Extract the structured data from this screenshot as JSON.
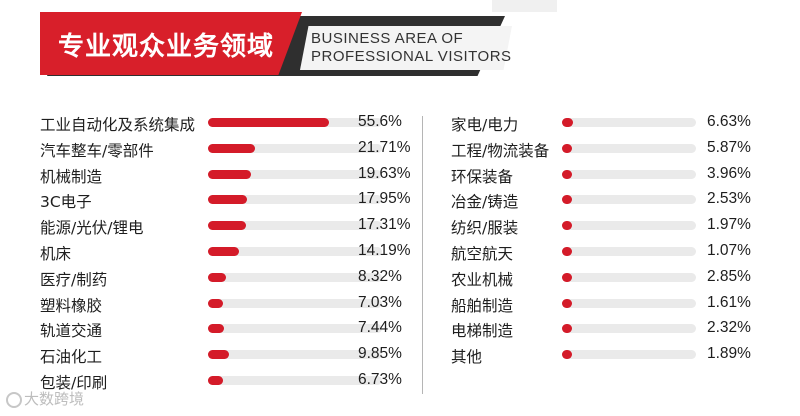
{
  "header": {
    "title_cn": "专业观众业务领域",
    "title_en_line1": "BUSINESS AREA OF",
    "title_en_line2": "PROFESSIONAL VISITORS"
  },
  "watermark": "大数跨境",
  "colors": {
    "accent": "#d41b29",
    "track": "#eaeaea",
    "banner_dark": "#2f2f2f"
  },
  "chart_data": {
    "type": "bar",
    "orientation": "horizontal",
    "title": "专业观众业务领域",
    "unit": "%",
    "columns": [
      {
        "categories": [
          "工业自动化及系统集成",
          "汽车整车/零部件",
          "机械制造",
          "3C电子",
          "能源/光伏/锂电",
          "机床",
          "医疗/制药",
          "塑料橡胶",
          "轨道交通",
          "石油化工",
          "包装/印刷"
        ],
        "values": [
          55.6,
          21.71,
          19.63,
          17.95,
          17.31,
          14.19,
          8.32,
          7.03,
          7.44,
          9.85,
          6.73
        ],
        "labels": [
          "55.6%",
          "21.71%",
          "19.63%",
          "17.95%",
          "17.31%",
          "14.19%",
          "8.32%",
          "7.03%",
          "7.44%",
          "9.85%",
          "6.73%"
        ]
      },
      {
        "categories": [
          "家电/电力",
          "工程/物流装备",
          "环保装备",
          "冶金/铸造",
          "纺织/服装",
          "航空航天",
          "农业机械",
          "船舶制造",
          "电梯制造",
          "其他"
        ],
        "values": [
          6.63,
          5.87,
          3.96,
          2.53,
          1.97,
          1.07,
          2.85,
          1.61,
          2.32,
          1.89
        ],
        "labels": [
          "6.63%",
          "5.87%",
          "3.96%",
          "2.53%",
          "1.97%",
          "1.07%",
          "2.85%",
          "1.61%",
          "2.32%",
          "1.89%"
        ]
      }
    ],
    "xlim": [
      0,
      80
    ]
  }
}
